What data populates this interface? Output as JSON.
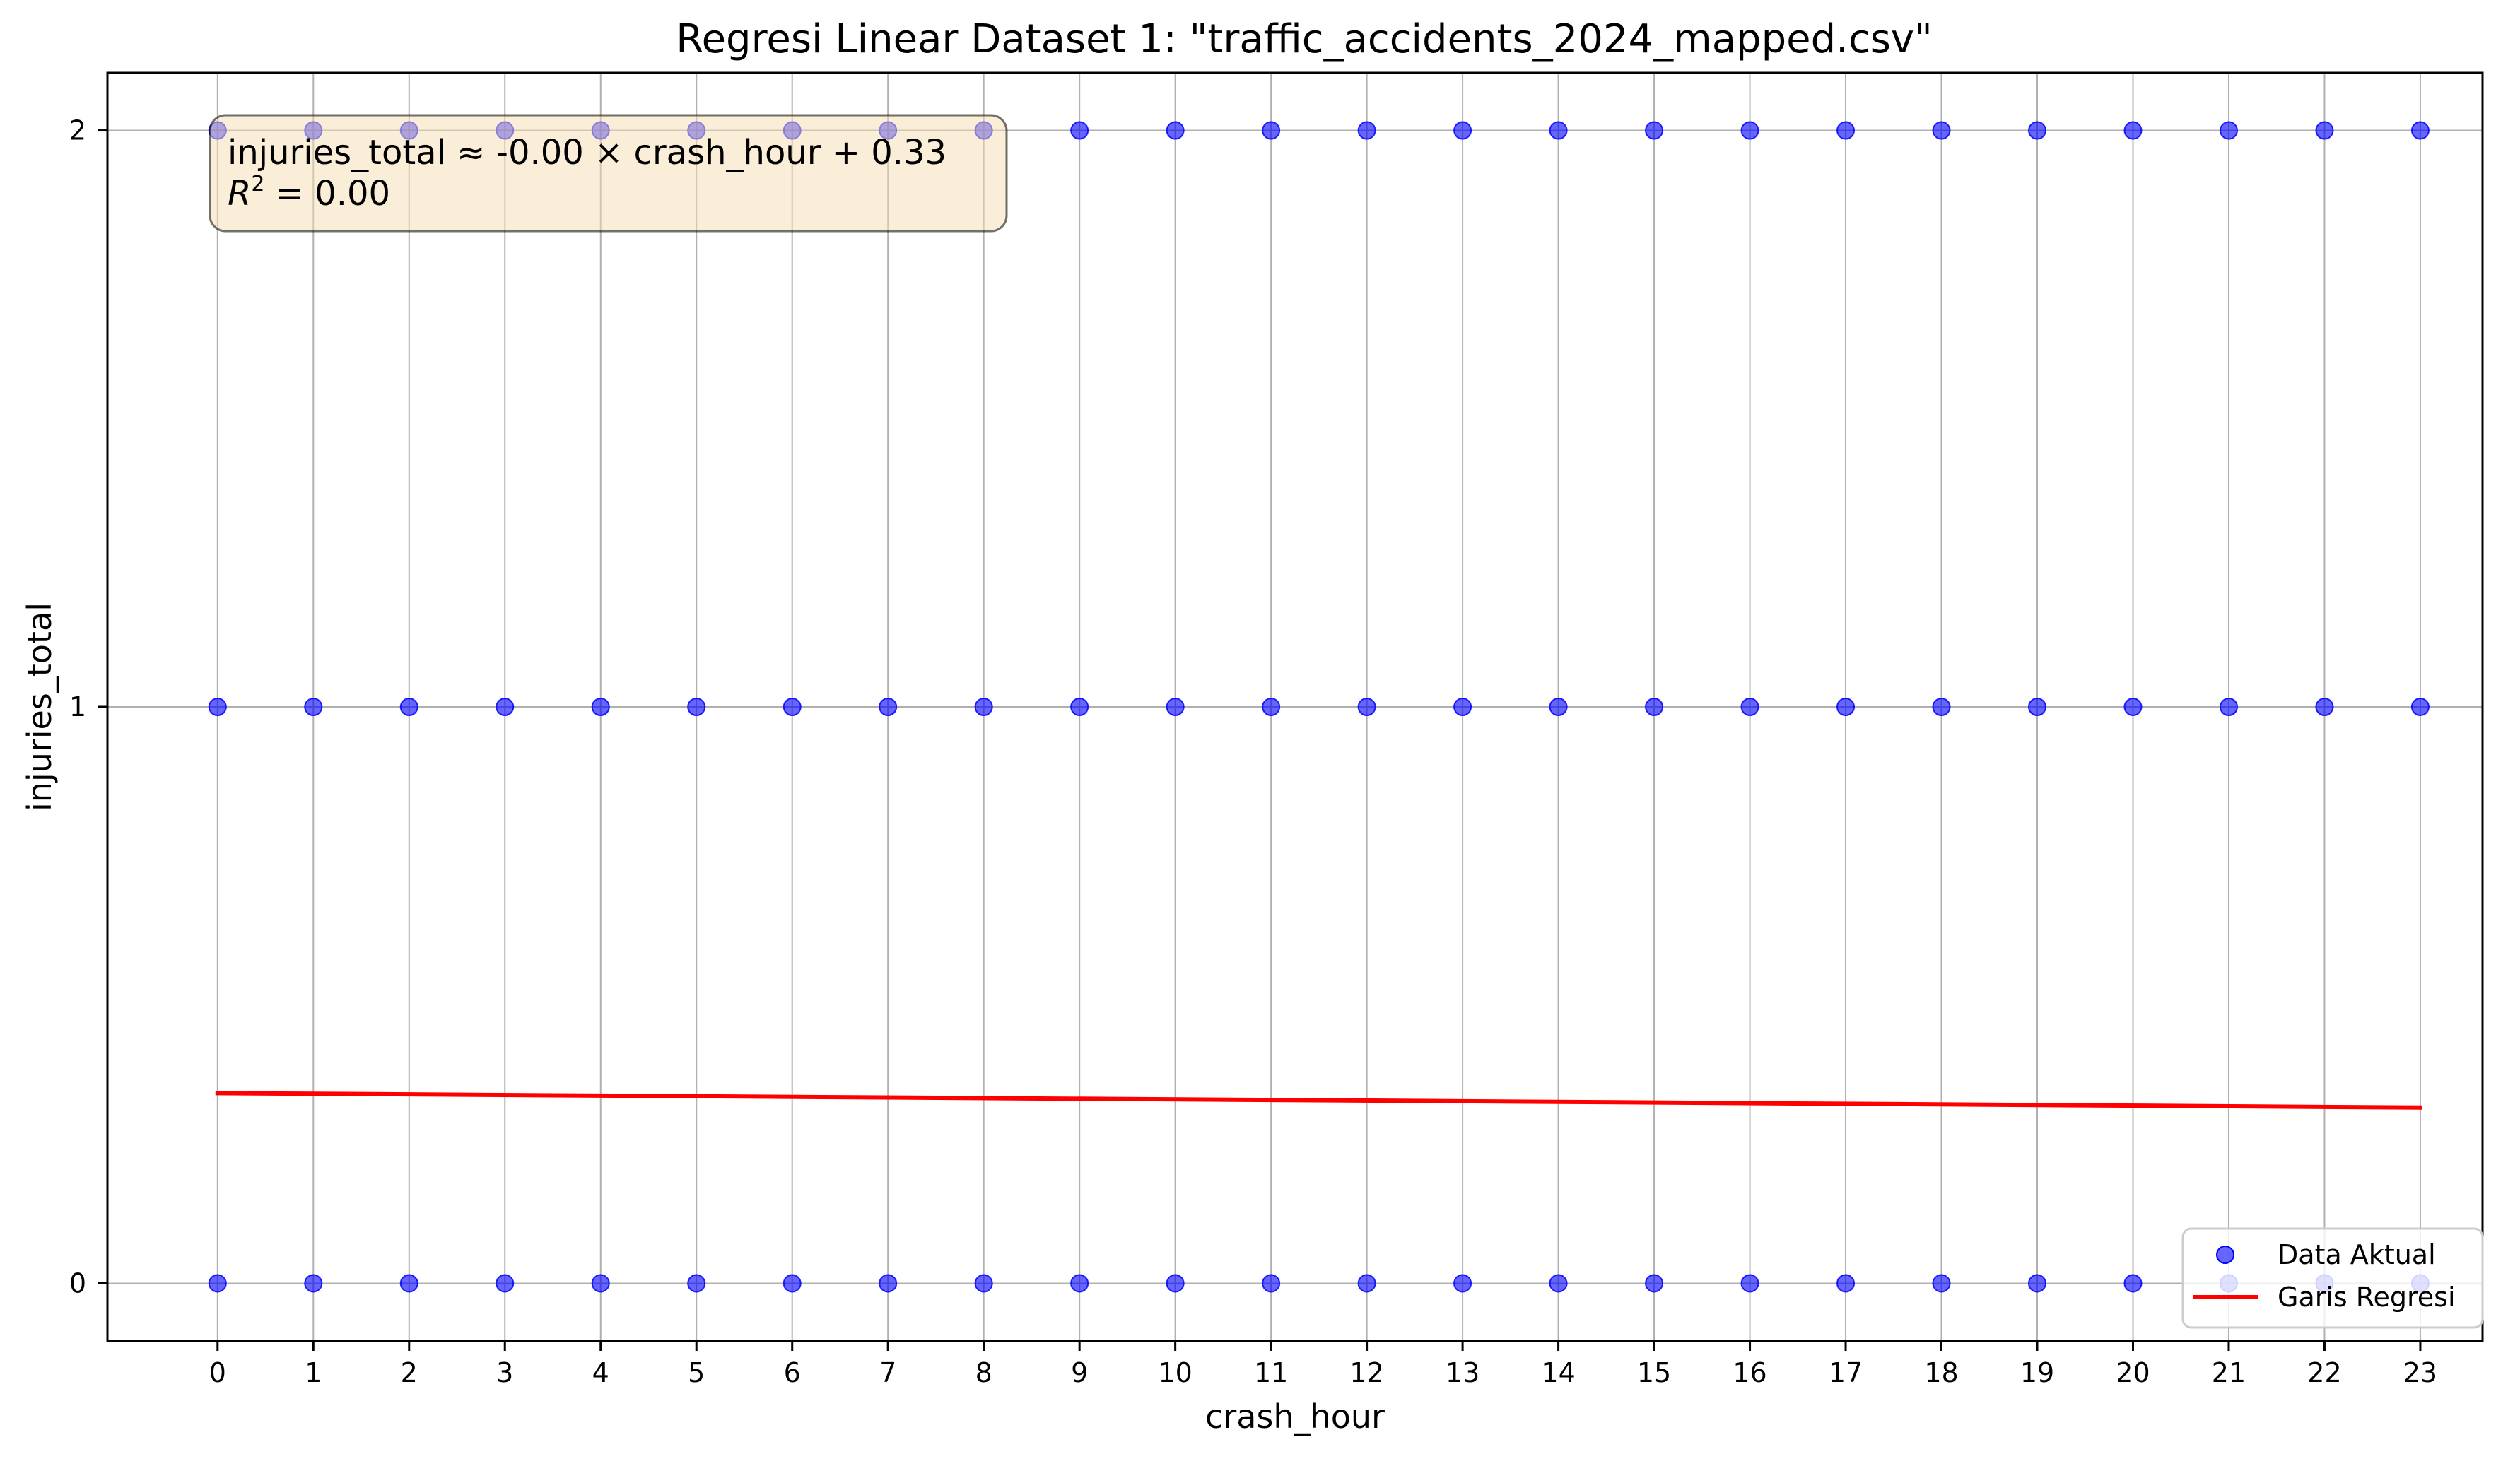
{
  "chart_data": {
    "type": "scatter",
    "title": "Regresi Linear Dataset 1: \"traffic_accidents_2024_mapped.csv\"",
    "xlabel": "crash_hour",
    "ylabel": "injuries_total",
    "xlim": [
      -1.15,
      23.65
    ],
    "ylim": [
      -0.1,
      2.1
    ],
    "x_ticks": [
      0,
      1,
      2,
      3,
      4,
      5,
      6,
      7,
      8,
      9,
      10,
      11,
      12,
      13,
      14,
      15,
      16,
      17,
      18,
      19,
      20,
      21,
      22,
      23
    ],
    "y_ticks": [
      0,
      1,
      2
    ],
    "grid": true,
    "legend_position": "lower-right",
    "series": [
      {
        "name": "Data Aktual",
        "kind": "scatter",
        "color": "#0000ff",
        "alpha": 0.6,
        "x": [
          0,
          1,
          2,
          3,
          4,
          5,
          6,
          7,
          8,
          9,
          10,
          11,
          12,
          13,
          14,
          15,
          16,
          17,
          18,
          19,
          20,
          21,
          22,
          23,
          0,
          1,
          2,
          3,
          4,
          5,
          6,
          7,
          8,
          9,
          10,
          11,
          12,
          13,
          14,
          15,
          16,
          17,
          18,
          19,
          20,
          21,
          22,
          23,
          0,
          1,
          2,
          3,
          4,
          5,
          6,
          7,
          8,
          9,
          10,
          11,
          12,
          13,
          14,
          15,
          16,
          17,
          18,
          19,
          20,
          21,
          22,
          23
        ],
        "y": [
          0,
          0,
          0,
          0,
          0,
          0,
          0,
          0,
          0,
          0,
          0,
          0,
          0,
          0,
          0,
          0,
          0,
          0,
          0,
          0,
          0,
          0,
          0,
          0,
          1,
          1,
          1,
          1,
          1,
          1,
          1,
          1,
          1,
          1,
          1,
          1,
          1,
          1,
          1,
          1,
          1,
          1,
          1,
          1,
          1,
          1,
          1,
          1,
          2,
          2,
          2,
          2,
          2,
          2,
          2,
          2,
          2,
          2,
          2,
          2,
          2,
          2,
          2,
          2,
          2,
          2,
          2,
          2,
          2,
          2,
          2,
          2
        ]
      },
      {
        "name": "Garis Regresi",
        "kind": "line",
        "color": "#ff0000",
        "x": [
          0,
          23
        ],
        "y": [
          0.33,
          0.305
        ]
      }
    ],
    "annotation": {
      "line1": "injuries_total  ≈  -0.00 × crash_hour + 0.33",
      "r2_symbol": "R",
      "r2_exp": "2",
      "r2_value": " = 0.00",
      "box_color": "#f5deb3"
    }
  }
}
